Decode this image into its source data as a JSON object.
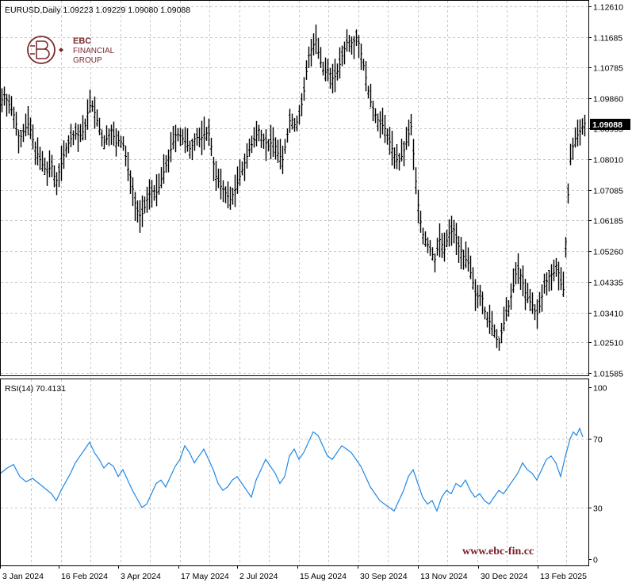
{
  "colors": {
    "background": "#ffffff",
    "grid": "#c8c8c8",
    "frame": "#000000",
    "bar": "#000000",
    "rsi_line": "#1e88e5",
    "brand": "#7a2a2f",
    "watermark": "#7a1f25"
  },
  "main_panel": {
    "symbol_info": "EURUSD,Daily  1.09223 1.09229 1.09080 1.09088",
    "last_price_tag": "1.09088"
  },
  "rsi_panel": {
    "label": "RSI(14) 70.4131"
  },
  "brand": {
    "logo_icon": "ebc-logo-icon",
    "line1": "EBC",
    "line2": "FINANCIAL",
    "line3": "GROUP"
  },
  "watermark": "www.ebc-fin.cc",
  "chart_data": [
    {
      "type": "bar",
      "name": "price",
      "ylim": [
        1.0152,
        1.1261
      ],
      "y_ticks": [
        "1.12610",
        "1.11685",
        "1.10785",
        "1.09860",
        "1.08955",
        "1.08010",
        "1.07085",
        "1.06185",
        "1.05260",
        "1.04335",
        "1.03410",
        "1.02510",
        "1.01585"
      ],
      "x_labels": [
        "3 Jan 2024",
        "16 Feb 2024",
        "3 Apr 2024",
        "17 May 2024",
        "2 Jul 2024",
        "15 Aug 2024",
        "30 Sep 2024",
        "13 Nov 2024",
        "30 Dec 2024",
        "13 Feb 2025"
      ],
      "last_value": 1.09088,
      "path": [
        [
          0,
          1.096
        ],
        [
          4,
          1.1
        ],
        [
          10,
          1.097
        ],
        [
          18,
          1.093
        ],
        [
          24,
          1.086
        ],
        [
          30,
          1.089
        ],
        [
          36,
          1.091
        ],
        [
          42,
          1.085
        ],
        [
          48,
          1.081
        ],
        [
          54,
          1.078
        ],
        [
          60,
          1.076
        ],
        [
          64,
          1.079
        ],
        [
          70,
          1.073
        ],
        [
          76,
          1.078
        ],
        [
          82,
          1.083
        ],
        [
          88,
          1.086
        ],
        [
          94,
          1.088
        ],
        [
          100,
          1.087
        ],
        [
          106,
          1.089
        ],
        [
          110,
          1.094
        ],
        [
          114,
          1.097
        ],
        [
          118,
          1.095
        ],
        [
          124,
          1.09
        ],
        [
          130,
          1.085
        ],
        [
          136,
          1.087
        ],
        [
          140,
          1.089
        ],
        [
          146,
          1.085
        ],
        [
          150,
          1.086
        ],
        [
          156,
          1.084
        ],
        [
          160,
          1.078
        ],
        [
          165,
          1.074
        ],
        [
          170,
          1.067
        ],
        [
          175,
          1.063
        ],
        [
          180,
          1.064
        ],
        [
          186,
          1.069
        ],
        [
          192,
          1.071
        ],
        [
          198,
          1.07
        ],
        [
          204,
          1.075
        ],
        [
          210,
          1.079
        ],
        [
          216,
          1.084
        ],
        [
          222,
          1.088
        ],
        [
          228,
          1.087
        ],
        [
          234,
          1.085
        ],
        [
          240,
          1.083
        ],
        [
          246,
          1.087
        ],
        [
          252,
          1.086
        ],
        [
          258,
          1.088
        ],
        [
          264,
          1.088
        ],
        [
          268,
          1.08
        ],
        [
          272,
          1.075
        ],
        [
          278,
          1.072
        ],
        [
          284,
          1.07
        ],
        [
          290,
          1.068
        ],
        [
          296,
          1.071
        ],
        [
          302,
          1.075
        ],
        [
          308,
          1.079
        ],
        [
          314,
          1.083
        ],
        [
          320,
          1.086
        ],
        [
          326,
          1.089
        ],
        [
          332,
          1.086
        ],
        [
          338,
          1.084
        ],
        [
          344,
          1.086
        ],
        [
          350,
          1.082
        ],
        [
          356,
          1.08
        ],
        [
          360,
          1.085
        ],
        [
          366,
          1.093
        ],
        [
          372,
          1.09
        ],
        [
          378,
          1.094
        ],
        [
          384,
          1.102
        ],
        [
          388,
          1.111
        ],
        [
          394,
          1.114
        ],
        [
          398,
          1.116
        ],
        [
          402,
          1.111
        ],
        [
          408,
          1.106
        ],
        [
          414,
          1.107
        ],
        [
          420,
          1.104
        ],
        [
          426,
          1.107
        ],
        [
          432,
          1.112
        ],
        [
          438,
          1.116
        ],
        [
          444,
          1.115
        ],
        [
          450,
          1.117
        ],
        [
          454,
          1.113
        ],
        [
          460,
          1.106
        ],
        [
          466,
          1.098
        ],
        [
          472,
          1.094
        ],
        [
          478,
          1.091
        ],
        [
          484,
          1.09
        ],
        [
          490,
          1.086
        ],
        [
          496,
          1.082
        ],
        [
          502,
          1.079
        ],
        [
          508,
          1.082
        ],
        [
          514,
          1.087
        ],
        [
          518,
          1.09
        ],
        [
          522,
          1.079
        ],
        [
          526,
          1.068
        ],
        [
          532,
          1.058
        ],
        [
          538,
          1.055
        ],
        [
          544,
          1.052
        ],
        [
          548,
          1.05
        ],
        [
          554,
          1.056
        ],
        [
          560,
          1.053
        ],
        [
          566,
          1.058
        ],
        [
          572,
          1.059
        ],
        [
          578,
          1.054
        ],
        [
          584,
          1.051
        ],
        [
          590,
          1.049
        ],
        [
          596,
          1.043
        ],
        [
          600,
          1.038
        ],
        [
          606,
          1.041
        ],
        [
          612,
          1.033
        ],
        [
          618,
          1.031
        ],
        [
          624,
          1.028
        ],
        [
          628,
          1.024
        ],
        [
          634,
          1.03
        ],
        [
          640,
          1.035
        ],
        [
          646,
          1.041
        ],
        [
          652,
          1.048
        ],
        [
          658,
          1.044
        ],
        [
          662,
          1.04
        ],
        [
          666,
          1.038
        ],
        [
          672,
          1.036
        ],
        [
          676,
          1.033
        ],
        [
          680,
          1.036
        ],
        [
          686,
          1.042
        ],
        [
          692,
          1.045
        ],
        [
          698,
          1.046
        ],
        [
          702,
          1.049
        ],
        [
          706,
          1.043
        ],
        [
          710,
          1.041
        ],
        [
          714,
          1.06
        ],
        [
          718,
          1.079
        ],
        [
          722,
          1.084
        ],
        [
          726,
          1.087
        ],
        [
          730,
          1.088
        ],
        [
          734,
          1.09
        ],
        [
          737,
          1.091
        ]
      ]
    },
    {
      "type": "line",
      "name": "RSI(14)",
      "ylim": [
        0,
        100
      ],
      "y_ticks": [
        100,
        70,
        30,
        0
      ],
      "last_value": 70.4131,
      "x": [
        0,
        8,
        16,
        24,
        32,
        40,
        48,
        56,
        64,
        70,
        76,
        82,
        88,
        94,
        100,
        106,
        112,
        118,
        124,
        130,
        136,
        142,
        148,
        154,
        160,
        166,
        172,
        178,
        184,
        190,
        196,
        202,
        208,
        214,
        220,
        226,
        232,
        238,
        244,
        250,
        256,
        262,
        268,
        274,
        280,
        286,
        292,
        298,
        304,
        310,
        316,
        322,
        328,
        334,
        340,
        346,
        352,
        358,
        364,
        370,
        376,
        382,
        388,
        394,
        400,
        406,
        412,
        418,
        424,
        430,
        436,
        442,
        448,
        454,
        460,
        466,
        472,
        478,
        484,
        490,
        496,
        502,
        508,
        514,
        520,
        526,
        532,
        538,
        544,
        550,
        556,
        562,
        568,
        574,
        580,
        586,
        592,
        598,
        604,
        610,
        616,
        622,
        628,
        634,
        640,
        646,
        652,
        658,
        664,
        670,
        676,
        682,
        688,
        694,
        700,
        706,
        712,
        718,
        722,
        726,
        730,
        734
      ],
      "y": [
        50,
        53,
        55,
        48,
        45,
        47,
        44,
        41,
        38,
        34,
        40,
        45,
        50,
        56,
        60,
        64,
        68,
        62,
        58,
        53,
        56,
        54,
        48,
        52,
        46,
        40,
        35,
        30,
        32,
        38,
        44,
        46,
        42,
        48,
        54,
        58,
        66,
        62,
        56,
        60,
        64,
        58,
        52,
        44,
        40,
        42,
        46,
        48,
        44,
        40,
        36,
        46,
        52,
        58,
        54,
        50,
        44,
        48,
        60,
        64,
        58,
        62,
        68,
        74,
        72,
        66,
        60,
        58,
        62,
        66,
        64,
        62,
        58,
        54,
        48,
        42,
        38,
        34,
        32,
        30,
        28,
        34,
        40,
        48,
        52,
        44,
        36,
        32,
        34,
        28,
        36,
        40,
        38,
        44,
        42,
        46,
        40,
        36,
        38,
        34,
        32,
        36,
        40,
        38,
        42,
        46,
        50,
        56,
        52,
        50,
        46,
        52,
        58,
        60,
        56,
        48,
        60,
        70,
        74,
        72,
        76,
        71
      ]
    }
  ]
}
